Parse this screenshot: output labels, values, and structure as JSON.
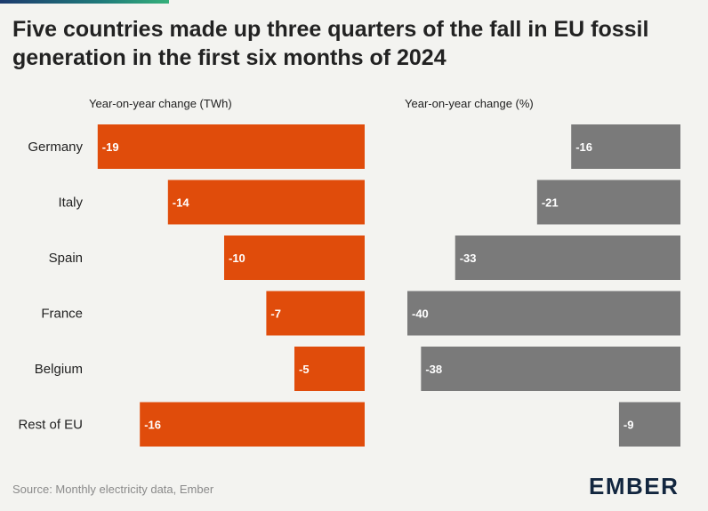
{
  "title": "Five countries made up three quarters of the fall in EU fossil generation in the first six months of 2024",
  "footer": {
    "source": "Source: Monthly electricity data, Ember",
    "logo": "EMBER"
  },
  "colors": {
    "twh_bar": "#e04c0b",
    "pct_bar": "#7a7a7a",
    "background": "#f3f3f0"
  },
  "chart_data": [
    {
      "type": "bar",
      "orientation": "horizontal",
      "title": "Year-on-year change (TWh)",
      "categories": [
        "Germany",
        "Italy",
        "Spain",
        "France",
        "Belgium",
        "Rest of EU"
      ],
      "values": [
        -19,
        -14,
        -10,
        -7,
        -5,
        -16
      ],
      "value_labels": [
        "-19",
        "-14",
        "-10",
        "-7",
        "-5",
        "-16"
      ],
      "xlim": [
        -20,
        0
      ],
      "grid": false
    },
    {
      "type": "bar",
      "orientation": "horizontal",
      "title": "Year-on-year change (%)",
      "categories": [
        "Germany",
        "Italy",
        "Spain",
        "France",
        "Belgium",
        "Rest of EU"
      ],
      "values": [
        -16,
        -21,
        -33,
        -40,
        -38,
        -9
      ],
      "value_labels": [
        "-16",
        "-21",
        "-33",
        "-40",
        "-38",
        "-9"
      ],
      "xlim": [
        -40,
        0
      ],
      "grid": false
    }
  ]
}
